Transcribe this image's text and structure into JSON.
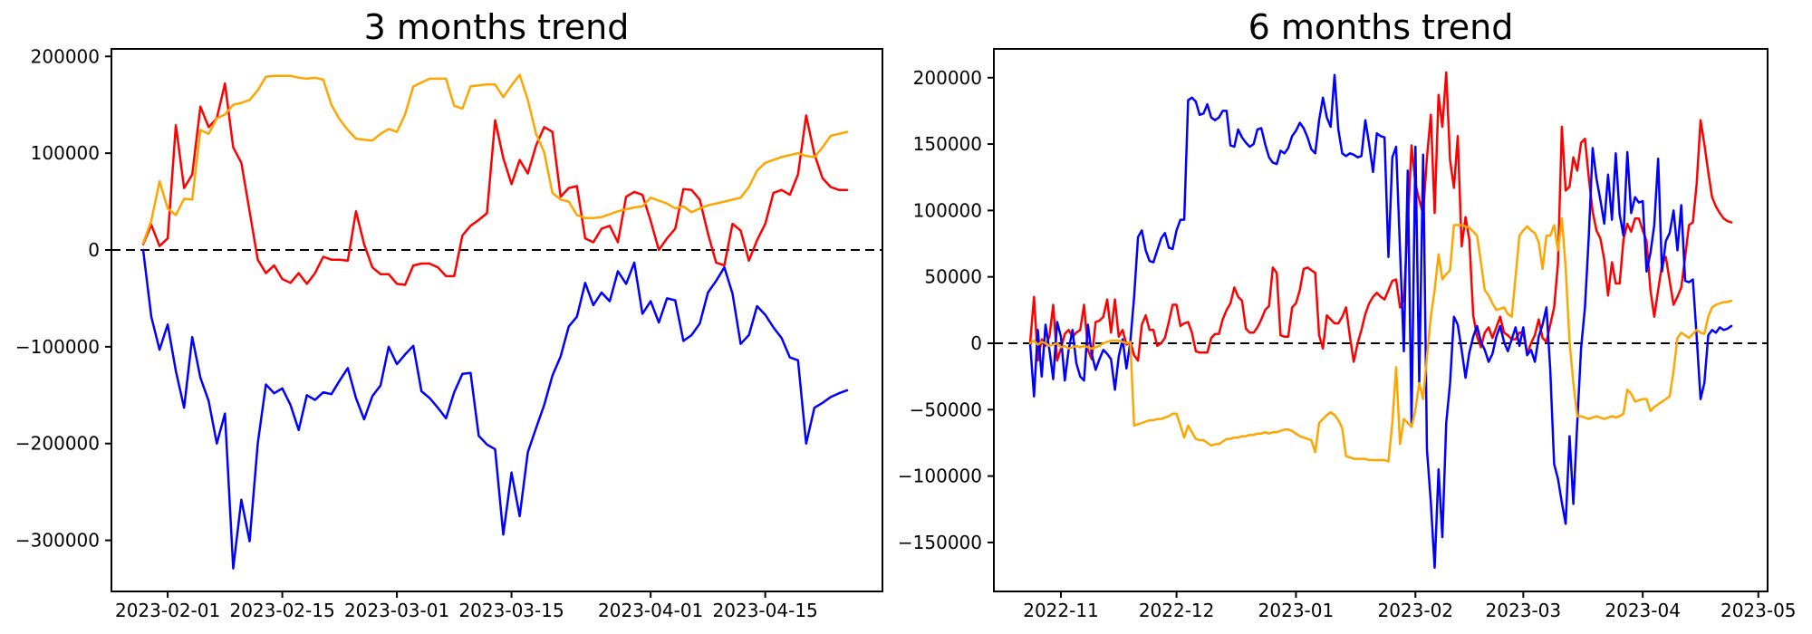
{
  "figure": {
    "background_color": "#ffffff",
    "text_color": "#000000",
    "axis_color": "#000000",
    "zero_line_color": "#000000",
    "zero_line_style": "dashed"
  },
  "chart_data": [
    {
      "type": "line",
      "title": "3 months trend",
      "xlabel": "",
      "ylabel": "",
      "grid": false,
      "legend": null,
      "value_unit": 1000,
      "x_start_date": "2023-01-29",
      "x_step_days": 1,
      "ylim": [
        -352000,
        207500
      ],
      "y_ticks": [
        200000,
        100000,
        0,
        -100000,
        -200000,
        -300000
      ],
      "y_tick_labels": [
        "200000",
        "100000",
        "0",
        "−100000",
        "−200000",
        "−300000"
      ],
      "x_ticks": [
        {
          "label": "2023-02-01",
          "date": "2023-02-01"
        },
        {
          "label": "2023-02-15",
          "date": "2023-02-15"
        },
        {
          "label": "2023-03-01",
          "date": "2023-03-01"
        },
        {
          "label": "2023-03-15",
          "date": "2023-03-15"
        },
        {
          "label": "2023-04-01",
          "date": "2023-04-01"
        },
        {
          "label": "2023-04-15",
          "date": "2023-04-15"
        }
      ],
      "zero_line": 0,
      "series": [
        {
          "name": "red",
          "color": "#ff0000",
          "values_thousands": [
            6,
            26,
            4,
            12,
            129,
            64,
            78,
            148,
            127,
            136,
            172,
            106,
            90,
            40,
            -10,
            -24,
            -16,
            -30,
            -34,
            -24,
            -35,
            -24,
            -7,
            -10,
            -10,
            -11,
            40,
            6,
            -18,
            -25,
            -25,
            -35,
            -36,
            -16,
            -14,
            -14,
            -18,
            -27,
            -27,
            15,
            25,
            31,
            38,
            134,
            95,
            68,
            93,
            79,
            108,
            127,
            122,
            55,
            64,
            66,
            12,
            8,
            22,
            25,
            8,
            55,
            60,
            57,
            30,
            0,
            12,
            22,
            63,
            62,
            52,
            17,
            -13,
            -16,
            27,
            20,
            -11,
            10,
            27,
            59,
            62,
            57,
            78,
            139,
            99,
            74,
            65,
            62,
            62
          ]
        },
        {
          "name": "blue",
          "color": "#0000ff",
          "values_thousands": [
            0,
            -69,
            -103,
            -77,
            -125,
            -163,
            -90,
            -132,
            -156,
            -200,
            -169,
            -329,
            -258,
            -301,
            -200,
            -139,
            -148,
            -143,
            -160,
            -186,
            -150,
            -155,
            -147,
            -149,
            -135,
            -122,
            -153,
            -175,
            -151,
            -140,
            -100,
            -118,
            -108,
            -99,
            -146,
            -153,
            -163,
            -174,
            -147,
            -128,
            -127,
            -192,
            -201,
            -206,
            -294,
            -230,
            -275,
            -209,
            -184,
            -160,
            -130,
            -110,
            -79,
            -69,
            -34,
            -57,
            -44,
            -53,
            -22,
            -35,
            -13,
            -66,
            -53,
            -75,
            -50,
            -52,
            -94,
            -88,
            -76,
            -44,
            -32,
            -18,
            -45,
            -97,
            -88,
            -58,
            -67,
            -80,
            -91,
            -111,
            -114,
            -200,
            -163,
            -158,
            -152,
            -148,
            -145
          ]
        },
        {
          "name": "orange",
          "color": "#ffa500",
          "values_thousands": [
            7,
            30,
            71,
            43,
            36,
            53,
            52,
            124,
            120,
            136,
            140,
            150,
            152,
            155,
            165,
            179,
            180,
            180,
            180,
            178,
            177,
            178,
            176,
            150,
            135,
            124,
            115,
            114,
            113,
            120,
            125,
            122,
            140,
            169,
            173,
            177,
            177,
            177,
            149,
            146,
            169,
            170,
            171,
            171,
            158,
            170,
            181,
            155,
            120,
            101,
            59,
            52,
            50,
            36,
            33,
            33,
            34,
            37,
            40,
            42,
            44,
            45,
            54,
            51,
            48,
            43,
            45,
            39,
            43,
            46,
            48,
            50,
            52,
            54,
            65,
            82,
            90,
            93,
            96,
            98,
            100,
            97,
            96,
            106,
            118,
            120,
            122
          ]
        }
      ]
    },
    {
      "type": "line",
      "title": "6 months trend",
      "xlabel": "",
      "ylabel": "",
      "grid": false,
      "legend": null,
      "value_unit": 1000,
      "x_start_date": "2022-10-24",
      "x_step_days": 1,
      "ylim": [
        -187000,
        222000
      ],
      "y_ticks": [
        200000,
        150000,
        100000,
        50000,
        0,
        -50000,
        -100000,
        -150000
      ],
      "y_tick_labels": [
        "200000",
        "150000",
        "100000",
        "50000",
        "0",
        "−50000",
        "−100000",
        "−150000"
      ],
      "x_ticks": [
        {
          "label": "2022-11",
          "date": "2022-11-01"
        },
        {
          "label": "2022-12",
          "date": "2022-12-01"
        },
        {
          "label": "2023-01",
          "date": "2023-01-01"
        },
        {
          "label": "2023-02",
          "date": "2023-02-01"
        },
        {
          "label": "2023-03",
          "date": "2023-03-01"
        },
        {
          "label": "2023-04",
          "date": "2023-04-01"
        },
        {
          "label": "2023-05",
          "date": "2023-05-01"
        }
      ],
      "zero_line": 0,
      "series": [
        {
          "name": "red",
          "color": "#ff0000",
          "values_thousands": [
            0,
            35,
            -13,
            3,
            -2,
            5,
            29,
            -13,
            -4,
            7,
            10,
            5,
            8,
            10,
            29,
            -5,
            -12,
            16,
            17,
            20,
            33,
            8,
            33,
            5,
            10,
            -1,
            1,
            -9,
            -13,
            14,
            21,
            10,
            10,
            -2,
            0,
            4,
            16,
            29,
            29,
            13,
            15,
            16,
            8,
            -6,
            -7,
            -7,
            -7,
            4,
            7,
            7,
            18,
            25,
            30,
            42,
            35,
            32,
            11,
            8,
            8,
            12,
            18,
            25,
            28,
            57,
            53,
            6,
            5,
            5,
            27,
            30,
            40,
            56,
            57,
            55,
            53,
            6,
            -4,
            21,
            18,
            15,
            15,
            20,
            27,
            5,
            -14,
            0,
            10,
            22,
            30,
            35,
            38,
            35,
            33,
            40,
            47,
            48,
            27,
            33,
            90,
            149,
            120,
            108,
            97,
            140,
            172,
            98,
            187,
            163,
            204,
            138,
            117,
            156,
            73,
            95,
            78,
            21,
            5,
            -3,
            8,
            12,
            4,
            12,
            20,
            8,
            6,
            3,
            3,
            8,
            8,
            -8,
            0,
            6,
            18,
            4,
            1,
            14,
            27,
            60,
            163,
            115,
            118,
            140,
            130,
            151,
            154,
            125,
            99,
            85,
            79,
            63,
            36,
            61,
            45,
            45,
            78,
            90,
            84,
            94,
            94,
            85,
            77,
            40,
            20,
            40,
            59,
            65,
            47,
            29,
            35,
            42,
            65,
            89,
            91,
            120,
            168,
            150,
            129,
            110,
            103,
            98,
            94,
            92,
            91
          ]
        },
        {
          "name": "blue",
          "color": "#0000ff",
          "values_thousands": [
            0,
            -40,
            10,
            -25,
            14,
            -5,
            -27,
            16,
            5,
            -28,
            -5,
            10,
            -15,
            -25,
            -28,
            14,
            -8,
            -20,
            -12,
            -5,
            -8,
            -12,
            -35,
            -10,
            3,
            -19,
            1,
            35,
            80,
            85,
            70,
            62,
            61,
            70,
            79,
            83,
            72,
            71,
            85,
            93,
            93,
            183,
            185,
            182,
            172,
            173,
            180,
            170,
            168,
            170,
            175,
            175,
            149,
            148,
            161,
            155,
            151,
            148,
            150,
            161,
            162,
            150,
            140,
            136,
            135,
            145,
            143,
            147,
            156,
            160,
            166,
            162,
            155,
            146,
            143,
            168,
            185,
            170,
            163,
            202,
            161,
            143,
            141,
            143,
            142,
            140,
            141,
            168,
            150,
            129,
            158,
            156,
            155,
            65,
            140,
            148,
            70,
            -6,
            130,
            -60,
            148,
            -30,
            142,
            -80,
            -120,
            -169,
            -95,
            -146,
            -60,
            -30,
            20,
            14,
            -5,
            -26,
            -7,
            5,
            13,
            1,
            -5,
            -14,
            -8,
            5,
            13,
            1,
            -6,
            3,
            12,
            -2,
            12,
            -9,
            -5,
            -14,
            5,
            14,
            27,
            -20,
            -91,
            -102,
            -120,
            -136,
            -70,
            -121,
            -60,
            -4,
            27,
            80,
            147,
            124,
            108,
            90,
            127,
            93,
            143,
            97,
            81,
            144,
            98,
            110,
            106,
            107,
            54,
            68,
            89,
            139,
            54,
            77,
            83,
            100,
            70,
            104,
            47,
            46,
            48,
            5,
            -42,
            -30,
            6,
            10,
            8,
            12,
            10,
            11,
            13
          ]
        },
        {
          "name": "orange",
          "color": "#ffa500",
          "values_thousands": [
            0,
            2,
            -1,
            1,
            0,
            -2,
            -1,
            0,
            -3,
            -2,
            -4,
            -3,
            -2,
            -3,
            -2,
            -3,
            -4,
            -3,
            -2,
            0,
            1,
            2,
            2,
            2,
            1,
            0,
            1,
            -62,
            -61,
            -60,
            -59,
            -58,
            -58,
            -57,
            -57,
            -56,
            -55,
            -53,
            -53,
            -62,
            -71,
            -62,
            -67,
            -72,
            -73,
            -73,
            -75,
            -77,
            -76,
            -76,
            -74,
            -72,
            -72,
            -71,
            -71,
            -70,
            -70,
            -69,
            -69,
            -68,
            -68,
            -67,
            -68,
            -67,
            -67,
            -66,
            -65,
            -65,
            -66,
            -68,
            -70,
            -71,
            -72,
            -73,
            -82,
            -60,
            -57,
            -54,
            -52,
            -54,
            -58,
            -64,
            -85,
            -86,
            -87,
            -87,
            -87,
            -87,
            -88,
            -88,
            -88,
            -88,
            -88,
            -89,
            -60,
            -18,
            -76,
            -57,
            -60,
            -63,
            -50,
            -30,
            -42,
            -10,
            20,
            40,
            67,
            48,
            52,
            55,
            89,
            89,
            89,
            88,
            87,
            84,
            81,
            61,
            40,
            36,
            30,
            25,
            26,
            27,
            22,
            20,
            50,
            81,
            85,
            88,
            85,
            83,
            76,
            56,
            81,
            81,
            89,
            70,
            94,
            57,
            1,
            -30,
            -55,
            -55,
            -56,
            -57,
            -56,
            -55,
            -56,
            -57,
            -56,
            -55,
            -56,
            -55,
            -53,
            -35,
            -38,
            -44,
            -43,
            -42,
            -42,
            -51,
            -48,
            -46,
            -44,
            -42,
            -40,
            -21,
            4,
            8,
            6,
            4,
            7,
            10,
            8,
            7,
            20,
            27,
            29,
            30,
            31,
            31,
            32
          ]
        }
      ]
    }
  ]
}
